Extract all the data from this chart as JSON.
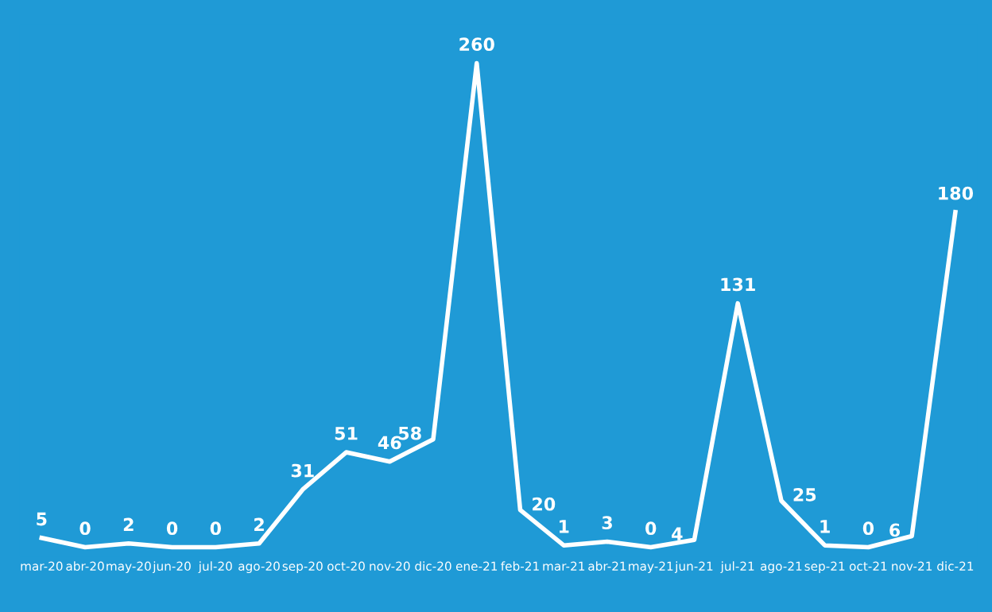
{
  "chart_data": {
    "type": "line",
    "categories": [
      "mar-20",
      "abr-20",
      "may-20",
      "jun-20",
      "jul-20",
      "ago-20",
      "sep-20",
      "oct-20",
      "nov-20",
      "dic-20",
      "ene-21",
      "feb-21",
      "mar-21",
      "abr-21",
      "may-21",
      "jun-21",
      "jul-21",
      "ago-21",
      "sep-21",
      "oct-21",
      "nov-21",
      "dic-21"
    ],
    "series": [
      {
        "color": "#ffffff",
        "values": [
          5,
          0,
          2,
          0,
          0,
          2,
          31,
          51,
          46,
          58,
          260,
          20,
          1,
          3,
          0,
          4,
          131,
          25,
          1,
          0,
          6,
          180
        ]
      }
    ],
    "relative": false,
    "data_labels": true,
    "grid": false,
    "legend": false,
    "marker": "none",
    "line_style": "solid"
  }
}
